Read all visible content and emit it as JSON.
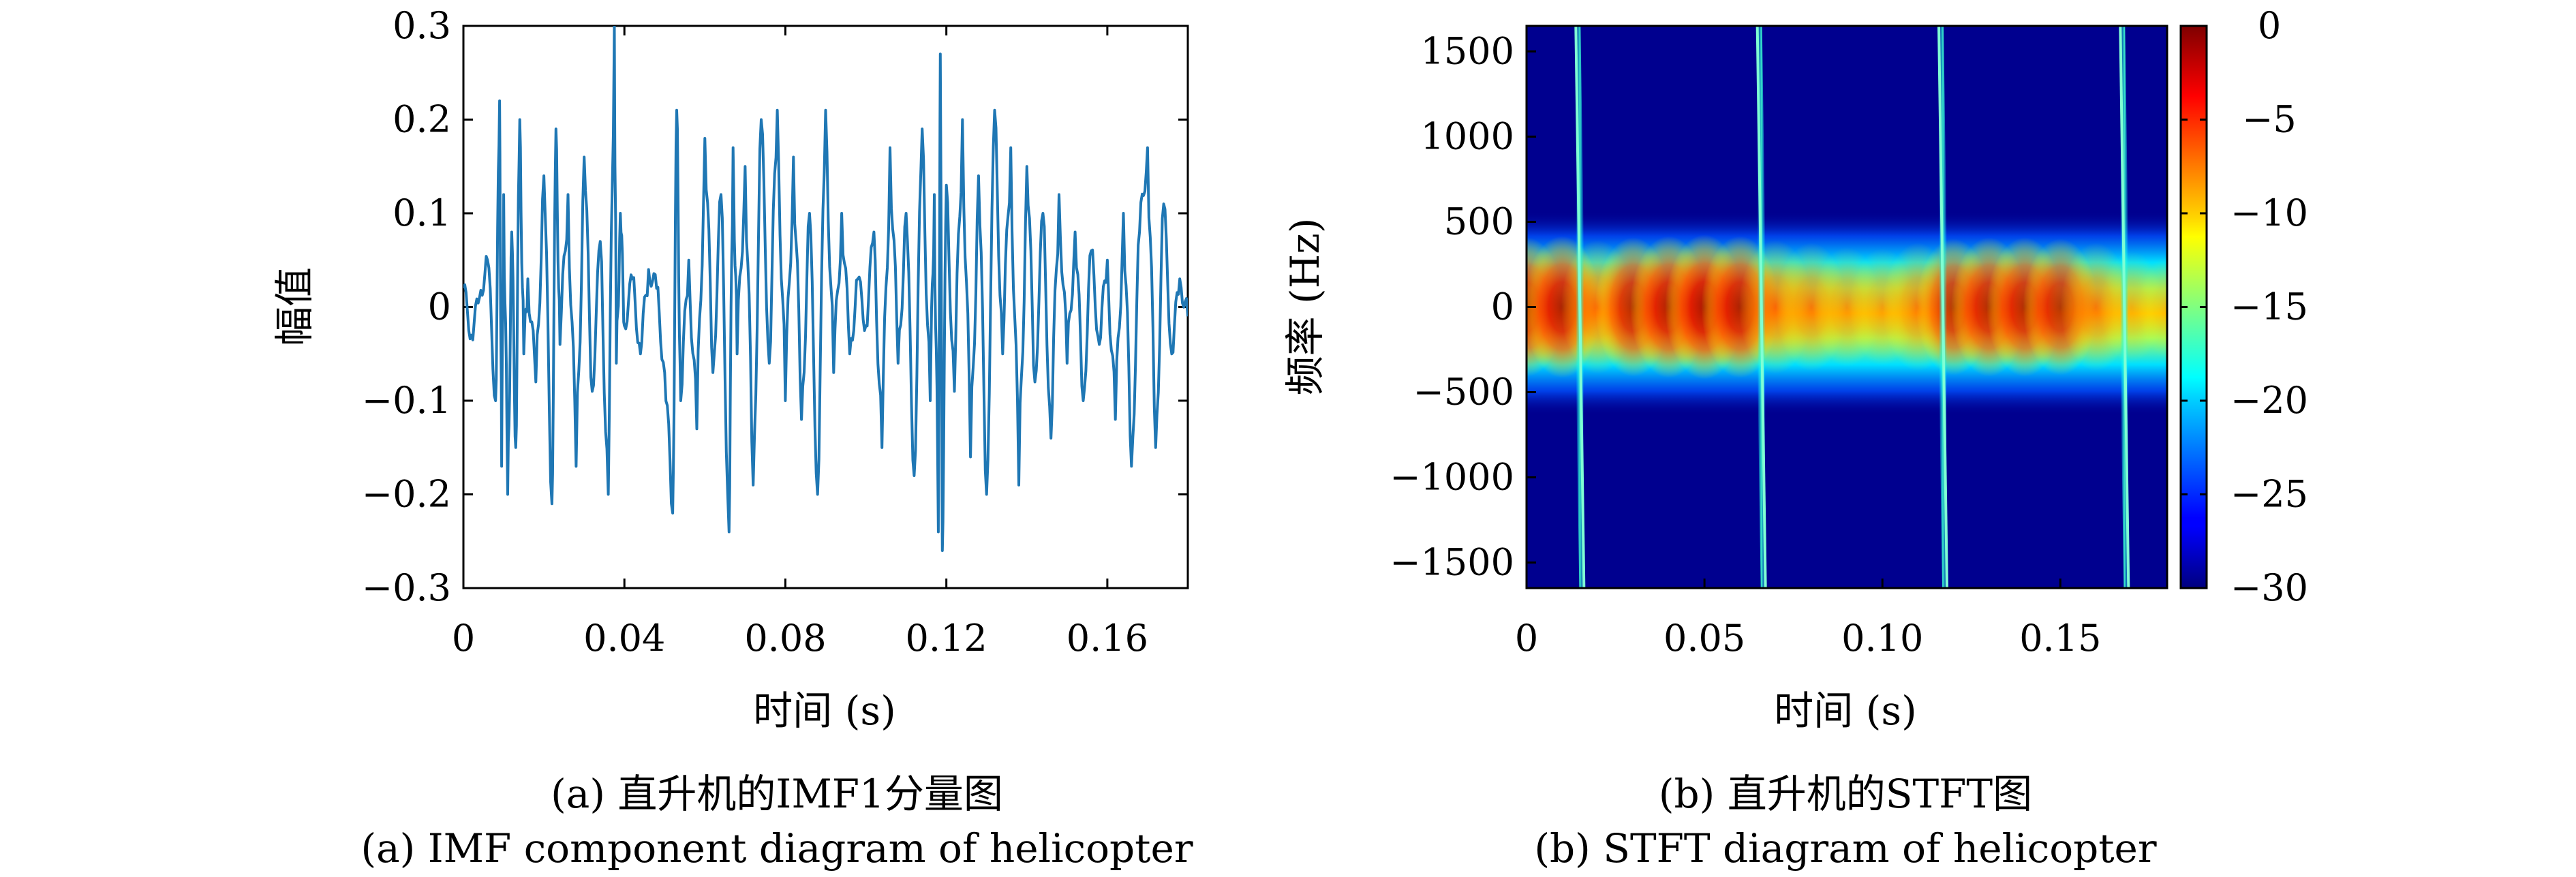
{
  "chart_data": [
    {
      "type": "line",
      "xlabel": "时间 (s)",
      "ylabel": "幅值",
      "xlim": [
        0,
        0.18
      ],
      "ylim": [
        -0.3,
        0.3
      ],
      "x_ticks": [
        "0",
        "0.04",
        "0.08",
        "0.12",
        "0.16"
      ],
      "x_tick_values": [
        0,
        0.04,
        0.08,
        0.12,
        0.16
      ],
      "y_ticks": [
        "−0.3",
        "−0.2",
        "−0.1",
        "0",
        "0.1",
        "0.2",
        "0.3"
      ],
      "y_tick_values": [
        -0.3,
        -0.2,
        -0.1,
        0,
        0.1,
        0.2,
        0.3
      ],
      "line_color": "#1f77b4",
      "series": [
        {
          "x": [
            0,
            0.002,
            0.004,
            0.006,
            0.008,
            0.009,
            0.0095,
            0.01,
            0.011,
            0.012,
            0.013,
            0.014,
            0.015,
            0.016,
            0.018,
            0.02,
            0.022,
            0.023,
            0.024,
            0.026,
            0.028,
            0.03,
            0.032,
            0.034,
            0.036,
            0.0375,
            0.038,
            0.039,
            0.04,
            0.042,
            0.044,
            0.046,
            0.048,
            0.05,
            0.052,
            0.053,
            0.054,
            0.056,
            0.058,
            0.06,
            0.062,
            0.064,
            0.066,
            0.067,
            0.068,
            0.07,
            0.072,
            0.074,
            0.076,
            0.078,
            0.08,
            0.082,
            0.084,
            0.086,
            0.088,
            0.09,
            0.092,
            0.094,
            0.096,
            0.098,
            0.1,
            0.102,
            0.104,
            0.106,
            0.108,
            0.11,
            0.112,
            0.114,
            0.116,
            0.117,
            0.118,
            0.1185,
            0.119,
            0.12,
            0.122,
            0.124,
            0.126,
            0.128,
            0.13,
            0.132,
            0.134,
            0.136,
            0.138,
            0.14,
            0.142,
            0.144,
            0.146,
            0.148,
            0.15,
            0.152,
            0.154,
            0.156,
            0.158,
            0.16,
            0.162,
            0.164,
            0.166,
            0.168,
            0.17,
            0.172,
            0.174,
            0.176,
            0.178,
            0.18
          ],
          "y": [
            0.02,
            -0.03,
            0.01,
            0.05,
            -0.1,
            0.22,
            -0.17,
            0.12,
            -0.2,
            0.08,
            -0.15,
            0.2,
            -0.05,
            0.03,
            -0.08,
            0.14,
            -0.21,
            0.19,
            -0.04,
            0.12,
            -0.17,
            0.16,
            -0.09,
            0.07,
            -0.2,
            0.3,
            -0.06,
            0.1,
            -0.02,
            0.03,
            -0.05,
            0.04,
            0.02,
            -0.07,
            -0.22,
            0.21,
            -0.1,
            0.05,
            -0.13,
            0.18,
            -0.07,
            0.12,
            -0.24,
            0.17,
            -0.05,
            0.15,
            -0.19,
            0.2,
            -0.06,
            0.21,
            -0.1,
            0.16,
            -0.12,
            0.1,
            -0.2,
            0.21,
            -0.07,
            0.1,
            -0.05,
            0.03,
            -0.02,
            0.08,
            -0.15,
            0.17,
            -0.06,
            0.1,
            -0.18,
            0.19,
            -0.1,
            0.12,
            -0.24,
            0.27,
            -0.26,
            0.13,
            -0.09,
            0.2,
            -0.16,
            0.14,
            -0.2,
            0.21,
            -0.05,
            0.17,
            -0.19,
            0.15,
            -0.08,
            0.1,
            -0.14,
            0.12,
            -0.06,
            0.08,
            -0.1,
            0.06,
            -0.04,
            0.05,
            -0.12,
            0.1,
            -0.17,
            0.08,
            0.17,
            -0.15,
            0.11,
            -0.05,
            0.03,
            -0.01
          ]
        }
      ]
    },
    {
      "type": "heatmap",
      "xlabel": "时间 (s)",
      "ylabel": "频率 (Hz)",
      "xlim": [
        0,
        0.18
      ],
      "ylim": [
        -1650,
        1650
      ],
      "x_ticks": [
        "0",
        "0.05",
        "0.10",
        "0.15"
      ],
      "x_tick_values": [
        0,
        0.05,
        0.1,
        0.15
      ],
      "y_ticks": [
        "1500",
        "1000",
        "500",
        "0",
        "−500",
        "−1000",
        "−1500"
      ],
      "y_tick_values": [
        1500,
        1000,
        500,
        0,
        -500,
        -1000,
        -1500
      ],
      "colorbar_ticks": [
        "0",
        "−5",
        "−10",
        "−15",
        "−20",
        "−25",
        "−30"
      ],
      "colorbar_tick_values": [
        0,
        -5,
        -10,
        -15,
        -20,
        -25,
        -30
      ],
      "colorbar_range": [
        -30,
        0
      ],
      "colormap": "jet",
      "flash_times_s": [
        0.015,
        0.066,
        0.117,
        0.168
      ],
      "intensity_profile_dB": {
        "t": [
          0,
          0.01,
          0.02,
          0.03,
          0.04,
          0.05,
          0.06,
          0.07,
          0.08,
          0.09,
          0.1,
          0.11,
          0.12,
          0.13,
          0.14,
          0.15,
          0.16,
          0.17,
          0.18
        ],
        "peak_dB": [
          -4,
          -3,
          -6,
          -4,
          -3,
          -2,
          -3,
          -6,
          -8,
          -11,
          -12,
          -8,
          -5,
          -4,
          -4,
          -5,
          -8,
          -14,
          -18
        ]
      }
    }
  ],
  "captions": {
    "a_cn": "(a) 直升机的IMF1分量图",
    "a_en": "(a) IMF component diagram of helicopter",
    "b_cn": "(b) 直升机的STFT图",
    "b_en": "(b) STFT diagram of helicopter"
  }
}
